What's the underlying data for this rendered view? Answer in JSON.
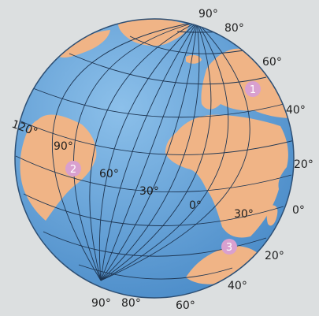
{
  "colors": {
    "background": "#dcdfe0",
    "ocean": "#5b9bd3",
    "ocean_light": "#8cc0ea",
    "land": "#f0b486",
    "grid": "#1d3552",
    "marker": "#d9a0cf"
  },
  "globe_labels": {
    "top_90": "90°",
    "top_80": "80°",
    "lat_60_north": "60°",
    "lat_40_north": "40°",
    "lat_20_north": "20°",
    "lat_0": "0°",
    "lat_20_south": "20°",
    "lat_40_south": "40°",
    "bottom_60": "60°",
    "bottom_80": "80°",
    "bottom_90": "90°",
    "lon_120": "120°",
    "lon_90": "90°",
    "lon_60": "60°",
    "lon_30_west": "30°",
    "lon_0": "0°",
    "lon_30_east": "30°"
  },
  "markers": [
    "1",
    "2",
    "3"
  ]
}
